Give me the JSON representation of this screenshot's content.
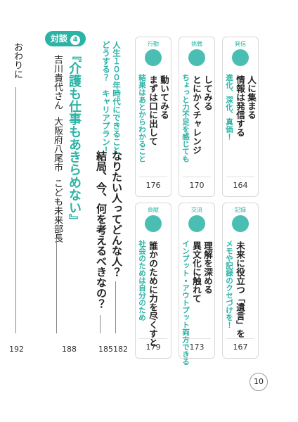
{
  "cards": [
    {
      "tag": "発信",
      "lead": "進化、深化、真価！",
      "title": [
        "情報は発信する",
        "人に集まる"
      ],
      "page": 164
    },
    {
      "tag": "挑戦",
      "lead": "ちょっと力不足を感じても",
      "title": [
        "とにかくチャレンジ",
        "してみる"
      ],
      "page": 170
    },
    {
      "tag": "行動",
      "lead": "結果はあとからわかること",
      "title": [
        "まずは口に出して",
        "動いてみる"
      ],
      "page": 176
    },
    {
      "tag": "記録",
      "lead": "メモや記録のクセづけを！",
      "title": [
        "未来に役立つ「遺言」を"
      ],
      "page": 167
    },
    {
      "tag": "交流",
      "lead": "インプット・アウトプット両方できる",
      "title": [
        "異文化に触れて",
        "理解を深める"
      ],
      "page": 173
    },
    {
      "tag": "貢献",
      "lead": "社会のためは自分のため",
      "title": [
        "誰かのために力を尽くすと"
      ],
      "page": 179
    }
  ],
  "feature": {
    "lead": [
      "人生１００年時代にできること",
      "どうする？　キャリアプラン！"
    ],
    "title": [
      "なりたい人ってどんな人？",
      "結局、今、何を考えるべきなの？"
    ],
    "pages": [
      182,
      185
    ]
  },
  "interview": {
    "badge": "対談",
    "number": 4,
    "title": "『介護も仕事もあきらめない』",
    "speaker": [
      "吉川貴代さん",
      "大阪府八尾市",
      "こども未来部長"
    ],
    "page": 188
  },
  "closing": {
    "title": "おわりに",
    "page": 192
  },
  "page_number": 10
}
